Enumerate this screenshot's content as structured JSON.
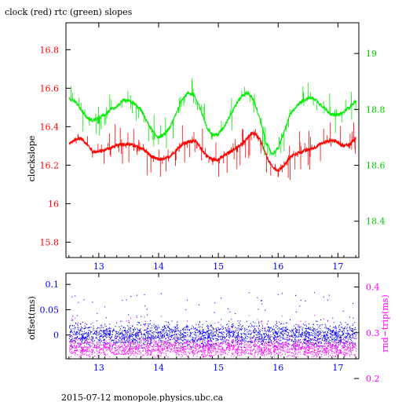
{
  "title": "clock (red) rtc (green) slopes",
  "footer": "2015-07-12 monopole.physics.ubc.ca",
  "colors": {
    "red": "#ff0000",
    "green": "#00ee00",
    "blue": "#0000ff",
    "magenta": "#ff00ff",
    "axis": "#000000"
  },
  "chart_data": [
    {
      "type": "line",
      "ylabel": "clockslope",
      "xlim": [
        12.45,
        17.35
      ],
      "ylim": [
        15.72,
        16.94
      ],
      "y2lim": [
        18.27,
        19.11
      ],
      "x_ticks": [
        "13",
        "14",
        "15",
        "16",
        "17"
      ],
      "y_ticks": [
        "15.8",
        "16",
        "16.2",
        "16.4",
        "16.6",
        "16.8"
      ],
      "y2_ticks": [
        "18.4",
        "18.6",
        "18.8",
        "19"
      ],
      "grid": false,
      "series": [
        {
          "name": "clock (red)",
          "axis": "left",
          "x": [
            12.5,
            12.6,
            12.7,
            12.8,
            12.9,
            13.0,
            13.1,
            13.2,
            13.3,
            13.4,
            13.5,
            13.6,
            13.7,
            13.8,
            13.9,
            14.0,
            14.1,
            14.2,
            14.3,
            14.4,
            14.5,
            14.6,
            14.7,
            14.8,
            14.9,
            15.0,
            15.1,
            15.2,
            15.3,
            15.4,
            15.5,
            15.6,
            15.7,
            15.8,
            15.9,
            16.0,
            16.1,
            16.2,
            16.3,
            16.4,
            16.5,
            16.6,
            16.7,
            16.8,
            16.9,
            17.0,
            17.1,
            17.2,
            17.3
          ],
          "y": [
            16.31,
            16.33,
            16.34,
            16.31,
            16.27,
            16.27,
            16.28,
            16.29,
            16.3,
            16.31,
            16.31,
            16.3,
            16.29,
            16.27,
            16.24,
            16.23,
            16.23,
            16.25,
            16.28,
            16.31,
            16.32,
            16.33,
            16.29,
            16.25,
            16.23,
            16.23,
            16.25,
            16.27,
            16.29,
            16.31,
            16.35,
            16.37,
            16.33,
            16.25,
            16.19,
            16.17,
            16.2,
            16.24,
            16.26,
            16.27,
            16.28,
            16.29,
            16.31,
            16.32,
            16.33,
            16.32,
            16.3,
            16.31,
            16.34
          ]
        },
        {
          "name": "rtc (green)",
          "axis": "right",
          "x": [
            12.5,
            12.6,
            12.7,
            12.8,
            12.9,
            13.0,
            13.1,
            13.2,
            13.3,
            13.4,
            13.5,
            13.6,
            13.7,
            13.8,
            13.9,
            14.0,
            14.1,
            14.2,
            14.3,
            14.4,
            14.5,
            14.6,
            14.7,
            14.8,
            14.9,
            15.0,
            15.1,
            15.2,
            15.3,
            15.4,
            15.5,
            15.6,
            15.7,
            15.8,
            15.9,
            16.0,
            16.1,
            16.2,
            16.3,
            16.4,
            16.5,
            16.6,
            16.7,
            16.8,
            16.9,
            17.0,
            17.1,
            17.2,
            17.3
          ],
          "y": [
            18.84,
            18.83,
            18.8,
            18.77,
            18.76,
            18.77,
            18.78,
            18.8,
            18.81,
            18.83,
            18.83,
            18.82,
            18.8,
            18.76,
            18.72,
            18.7,
            18.71,
            18.74,
            18.79,
            18.84,
            18.86,
            18.85,
            18.8,
            18.74,
            18.71,
            18.71,
            18.74,
            18.78,
            18.82,
            18.85,
            18.86,
            18.83,
            18.76,
            18.68,
            18.64,
            18.66,
            18.72,
            18.78,
            18.81,
            18.83,
            18.84,
            18.84,
            18.82,
            18.8,
            18.78,
            18.78,
            18.79,
            18.81,
            18.83
          ]
        }
      ]
    },
    {
      "type": "scatter",
      "ylabel": "offset(ms)",
      "y2label": "rnd−trip(ms)",
      "xlim": [
        12.45,
        17.35
      ],
      "ylim": [
        -0.047,
        0.122
      ],
      "y2lim": [
        0.243,
        0.43
      ],
      "x_ticks": [
        "13",
        "14",
        "15",
        "16",
        "17"
      ],
      "y_ticks": [
        "0",
        "0.05",
        "0.1"
      ],
      "y2_ticks": [
        "0.2",
        "0.3",
        "0.4"
      ],
      "grid": false,
      "series": [
        {
          "name": "offset",
          "axis": "left",
          "x_range": [
            12.5,
            17.3
          ],
          "center": 0.0,
          "spread": 0.014
        },
        {
          "name": "rnd-trip",
          "axis": "right",
          "x_range": [
            12.5,
            17.3
          ],
          "center": 0.266,
          "spread": 0.012
        }
      ]
    }
  ]
}
